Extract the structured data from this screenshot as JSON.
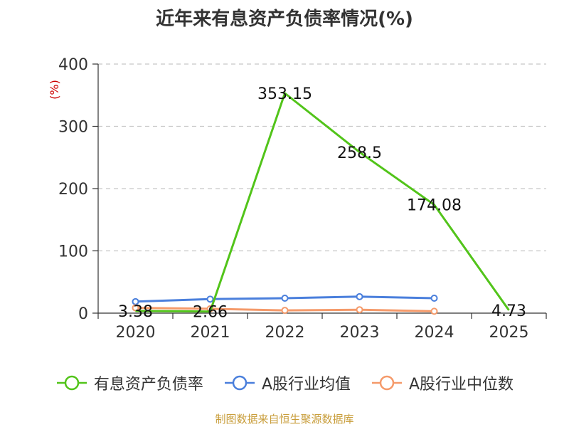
{
  "chart_data": {
    "type": "line",
    "title": "近年来有息资产负债率情况(%)",
    "ylabel": "(%)",
    "xlabel": "",
    "categories": [
      "2020",
      "2021",
      "2022",
      "2023",
      "2024",
      "2025"
    ],
    "ylim": [
      0,
      400
    ],
    "yticks": [
      0,
      100,
      200,
      300,
      400
    ],
    "grid": true,
    "legend_position": "bottom",
    "series": [
      {
        "name": "有息资产负债率",
        "color": "#52c41a",
        "values": [
          3.38,
          2.66,
          353.15,
          258.5,
          174.08,
          4.73
        ],
        "labels": [
          "3.38",
          "2.66",
          "353.15",
          "258.5",
          "174.08",
          "4.73"
        ],
        "markers": false
      },
      {
        "name": "A股行业均值",
        "color": "#4a7fdc",
        "values": [
          18.5,
          22.5,
          24.0,
          26.5,
          24.0,
          null
        ],
        "markers": true
      },
      {
        "name": "A股行业中位数",
        "color": "#f59a6a",
        "values": [
          8.5,
          7.0,
          4.5,
          5.5,
          3.0,
          null
        ],
        "markers": true
      }
    ]
  },
  "source_note": "制图数据来自恒生聚源数据库"
}
